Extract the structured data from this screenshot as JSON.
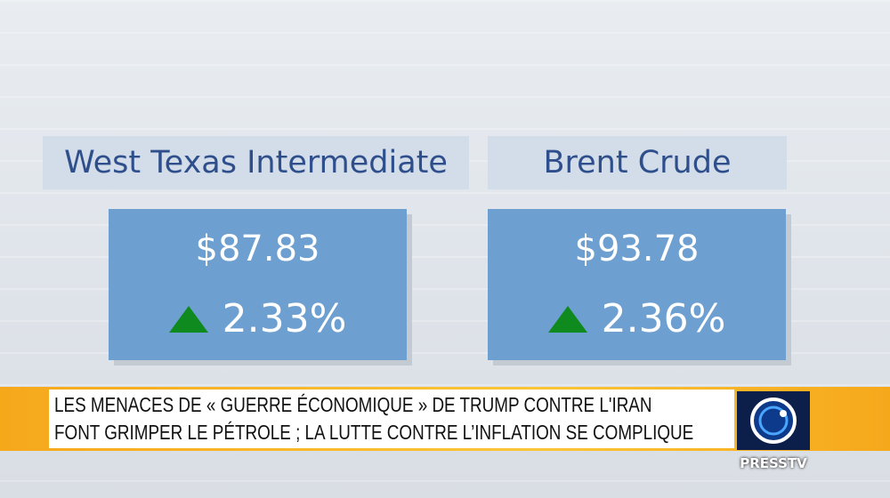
{
  "cards": [
    {
      "title": "West Texas Intermediate",
      "price": "$87.83",
      "change": "2.33%"
    },
    {
      "title": "Brent Crude",
      "price": "$93.78",
      "change": "2.36%"
    }
  ],
  "ticker": {
    "lines": [
      "LES MENACES DE « GUERRE ÉCONOMIQUE » DE TRUMP CONTRE L'IRAN",
      "FONT GRIMPER LE PÉTROLE ; LA LUTTE CONTRE L’INFLATION SE COMPLIQUE"
    ]
  },
  "logo": {
    "name": "PRESSTV"
  }
}
